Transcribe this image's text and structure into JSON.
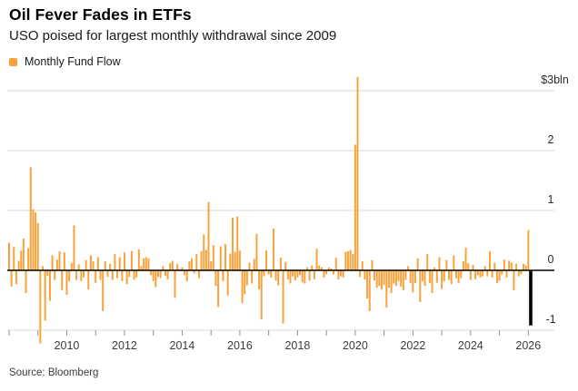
{
  "header": {
    "title": "Oil Fever Fades in ETFs",
    "subtitle": "USO poised for largest monthly withdrawal since 2009"
  },
  "legend": {
    "label": "Monthly Fund Flow",
    "swatch_color": "#F9A23C"
  },
  "source": "Source: Bloomberg",
  "colors": {
    "bar": "#F9A23C",
    "highlight_bar": "#000000",
    "gridline": "#d9d9d9",
    "zero_line": "#000000",
    "tick": "#8f8f8f",
    "axis_label": "#3c3c3c"
  },
  "chart_data": {
    "type": "bar",
    "title": "Oil Fever Fades in ETFs",
    "subtitle": "USO poised for largest monthly withdrawal since 2009",
    "series_name": "Monthly Fund Flow",
    "unit": "$bln",
    "x_start": "2008-01",
    "x_end": "2026-02",
    "x_frequency": "monthly",
    "ylim": [
      -1.35,
      3.35
    ],
    "grid": true,
    "legend_position": "top-left",
    "y_axis": [
      {
        "value": 3,
        "label": "$3bln"
      },
      {
        "value": 2,
        "label": "2"
      },
      {
        "value": 1,
        "label": "1"
      },
      {
        "value": 0,
        "label": "0"
      },
      {
        "value": -1,
        "label": "-1"
      }
    ],
    "x_tick_years": [
      2008,
      2009,
      2010,
      2011,
      2012,
      2013,
      2014,
      2015,
      2016,
      2017,
      2018,
      2019,
      2020,
      2021,
      2022,
      2023,
      2024,
      2025,
      2026
    ],
    "x_label_years": [
      "2010",
      "2012",
      "2014",
      "2016",
      "2018",
      "2020",
      "2022",
      "2024",
      "2026"
    ],
    "highlight_last_bar": true,
    "highlight_note": "largest monthly withdrawal since 2009",
    "values": [
      0.46,
      -0.27,
      0.39,
      -0.23,
      0.16,
      0.33,
      0.53,
      -0.38,
      0.37,
      1.72,
      1.02,
      0.97,
      0.79,
      -1.22,
      0.07,
      -0.84,
      -0.09,
      -0.51,
      0.25,
      -0.16,
      0.18,
      0.32,
      -0.33,
      0.3,
      -0.41,
      -0.18,
      0.12,
      0.75,
      -0.16,
      0.1,
      -0.18,
      -0.12,
      0.17,
      -0.32,
      0.25,
      0.15,
      -0.21,
      0.22,
      -0.16,
      -0.68,
      0.15,
      -0.11,
      0.11,
      -0.16,
      0.27,
      -0.13,
      0.22,
      -0.18,
      0.3,
      -0.23,
      -0.11,
      0.32,
      -0.16,
      -0.12,
      0.35,
      0.07,
      0.2,
      0.22,
      0.2,
      -0.08,
      -0.18,
      -0.28,
      -0.11,
      -0.13,
      0.07,
      -0.09,
      -0.15,
      0.12,
      0.16,
      -0.46,
      0.11,
      0.02,
      0.05,
      -0.08,
      -0.18,
      0.15,
      0.2,
      -0.05,
      0.27,
      -0.13,
      0.32,
      0.6,
      0.34,
      1.14,
      0.15,
      0.42,
      -0.26,
      -0.61,
      0.4,
      -0.18,
      0.44,
      -0.42,
      0.28,
      0.88,
      0.31,
      0.9,
      0.33,
      -0.55,
      -0.4,
      -0.25,
      0.13,
      -0.22,
      0.19,
      0.61,
      -0.32,
      -0.82,
      -0.1,
      0.33,
      -0.07,
      -0.12,
      0.7,
      -0.17,
      -0.25,
      0.21,
      -0.89,
      0.14,
      -0.15,
      -0.22,
      -0.1,
      -0.17,
      -0.12,
      -0.08,
      -0.2,
      -0.22,
      0.05,
      -0.17,
      0.08,
      -0.15,
      0.36,
      0.08,
      0.05,
      -0.12,
      -0.07,
      0.05,
      0.03,
      -0.07,
      0.21,
      -0.15,
      -0.1,
      -0.12,
      0.31,
      0.32,
      0.34,
      0.27,
      2.1,
      3.23,
      -0.11,
      0.15,
      -0.15,
      -0.47,
      -0.68,
      0.17,
      -0.17,
      -0.29,
      -0.26,
      -0.32,
      -0.24,
      -0.62,
      -0.29,
      -0.38,
      -0.22,
      -0.26,
      -0.18,
      -0.27,
      -0.33,
      -0.16,
      0.07,
      -0.21,
      -0.37,
      -0.21,
      0.2,
      -0.53,
      -0.18,
      -0.26,
      0.27,
      -0.21,
      -0.38,
      0.05,
      -0.21,
      0.22,
      -0.31,
      -0.18,
      0.17,
      -0.16,
      -0.23,
      0.25,
      -0.13,
      -0.21,
      -0.13,
      0.15,
      0.38,
      0.12,
      -0.16,
      0.09,
      -0.15,
      -0.08,
      -0.12,
      -0.1,
      0.07,
      -0.1,
      0.32,
      -0.12,
      0.13,
      -0.21,
      -0.17,
      -0.07,
      0.18,
      -0.12,
      0.16,
      0.13,
      -0.33,
      0.11,
      -0.1,
      -0.07,
      0.11,
      0.08,
      0.67,
      -0.92
    ]
  }
}
